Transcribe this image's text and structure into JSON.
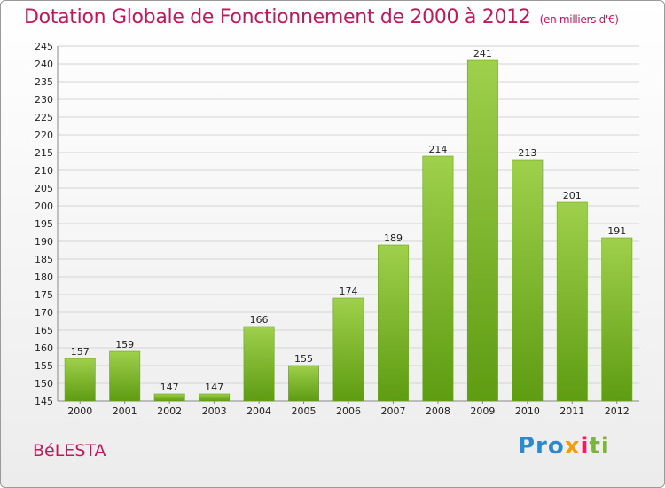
{
  "header": {
    "title": "Dotation Globale de Fonctionnement de 2000 à 2012",
    "unit": "(en milliers d'€)"
  },
  "commune": "BéLESTA",
  "logo": {
    "p1": "Pro",
    "p2": "x",
    "p3": "i",
    "p4": "ti"
  },
  "colors": {
    "bar_top": "#9fd04b",
    "bar_bottom": "#5e9c12",
    "title": "#c2185b"
  },
  "chart_data": {
    "type": "bar",
    "title": "Dotation Globale de Fonctionnement de 2000 à 2012",
    "subtitle": "(en milliers d'€)",
    "categories": [
      "2000",
      "2001",
      "2002",
      "2003",
      "2004",
      "2005",
      "2006",
      "2007",
      "2008",
      "2009",
      "2010",
      "2011",
      "2012"
    ],
    "values": [
      157,
      159,
      147,
      147,
      166,
      155,
      174,
      189,
      214,
      241,
      213,
      201,
      191
    ],
    "ylim": [
      145,
      245
    ],
    "yticks": [
      145,
      150,
      155,
      160,
      165,
      170,
      175,
      180,
      185,
      190,
      195,
      200,
      205,
      210,
      215,
      220,
      225,
      230,
      235,
      240,
      245
    ],
    "grid": true,
    "data_labels": true
  }
}
